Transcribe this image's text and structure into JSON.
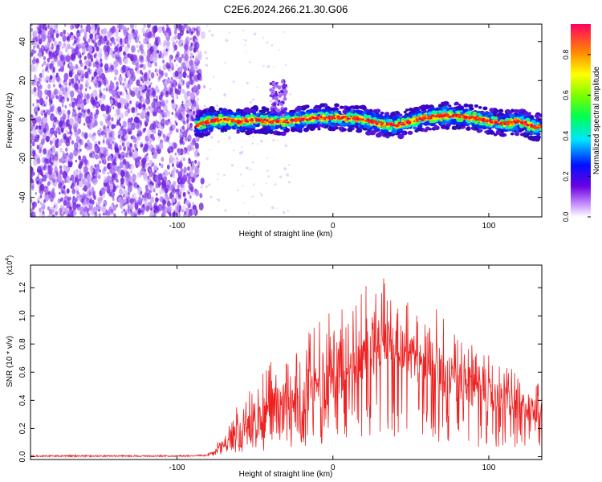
{
  "page_title": "C2E6.2024.266.21.30.G06",
  "chart_data": [
    {
      "type": "heatmap",
      "title": "C2E6.2024.266.21.30.G06",
      "xlabel": "Height of straight line (km)",
      "ylabel": "Frequency (Hz)",
      "xlim": [
        -194,
        134
      ],
      "ylim": [
        -50,
        49
      ],
      "x_ticks": [
        -100,
        0,
        100
      ],
      "y_ticks": [
        -40,
        -20,
        0,
        20,
        40
      ],
      "colorbar": {
        "label": "Normalized spectral amplitude",
        "range": [
          0.0,
          0.95
        ],
        "ticks": [
          0.0,
          0.2,
          0.4,
          0.6,
          0.8
        ],
        "colormap": "rainbow (violet-blue-cyan-green-yellow-orange-red)"
      },
      "noise_region": {
        "x_range": [
          -194,
          -86
        ],
        "amplitude": "low (violet scatter over full frequency range)"
      },
      "signal_band_center_hz": {
        "x": [
          -88,
          -80,
          -70,
          -60,
          -50,
          -40,
          -30,
          -20,
          -10,
          0,
          10,
          20,
          30,
          40,
          50,
          60,
          70,
          80,
          90,
          100,
          110,
          120,
          130,
          134
        ],
        "y": [
          -3,
          -1,
          0,
          -1,
          0,
          -1,
          -1,
          0,
          1,
          1,
          1,
          0,
          -2,
          -3,
          -1,
          1,
          2,
          2,
          1,
          -1,
          -2,
          -1,
          -4,
          -3
        ]
      },
      "colors": {
        "noise": "#7b2de0",
        "band_edge": "#2a2ae8",
        "band_core": "#ff3a00"
      }
    },
    {
      "type": "line",
      "xlabel": "Height of straight line (km)",
      "ylabel": "SNR (10 * v/v)",
      "y_multiplier_label": "(x10",
      "y_multiplier_exp": "4",
      "y_multiplier_close": ")",
      "xlim": [
        -194,
        134
      ],
      "ylim": [
        -0.02,
        1.36
      ],
      "x_ticks": [
        -100,
        0,
        100
      ],
      "y_ticks": [
        0.0,
        0.2,
        0.4,
        0.6,
        0.8,
        1.0,
        1.2
      ],
      "series": [
        {
          "color": "#ee2020",
          "envelope": {
            "x": [
              -194,
              -150,
              -100,
              -80,
              -75,
              -70,
              -60,
              -50,
              -40,
              -30,
              -20,
              -10,
              0,
              10,
              20,
              28,
              35,
              40,
              50,
              60,
              65,
              70,
              80,
              90,
              100,
              110,
              120,
              134
            ],
            "y_mean": [
              0.005,
              0.005,
              0.005,
              0.01,
              0.04,
              0.1,
              0.16,
              0.22,
              0.3,
              0.36,
              0.42,
              0.5,
              0.58,
              0.66,
              0.76,
              0.82,
              0.84,
              0.82,
              0.72,
              0.62,
              0.74,
              0.6,
              0.52,
              0.48,
              0.44,
              0.4,
              0.36,
              0.34
            ],
            "y_peak": [
              0.02,
              0.02,
              0.02,
              0.03,
              0.08,
              0.2,
              0.4,
              0.5,
              0.7,
              0.78,
              0.88,
              0.98,
              1.06,
              1.12,
              1.2,
              1.36,
              1.22,
              1.18,
              1.1,
              0.98,
              1.1,
              1.0,
              0.86,
              0.8,
              0.72,
              0.66,
              0.6,
              0.56
            ]
          }
        }
      ]
    }
  ]
}
